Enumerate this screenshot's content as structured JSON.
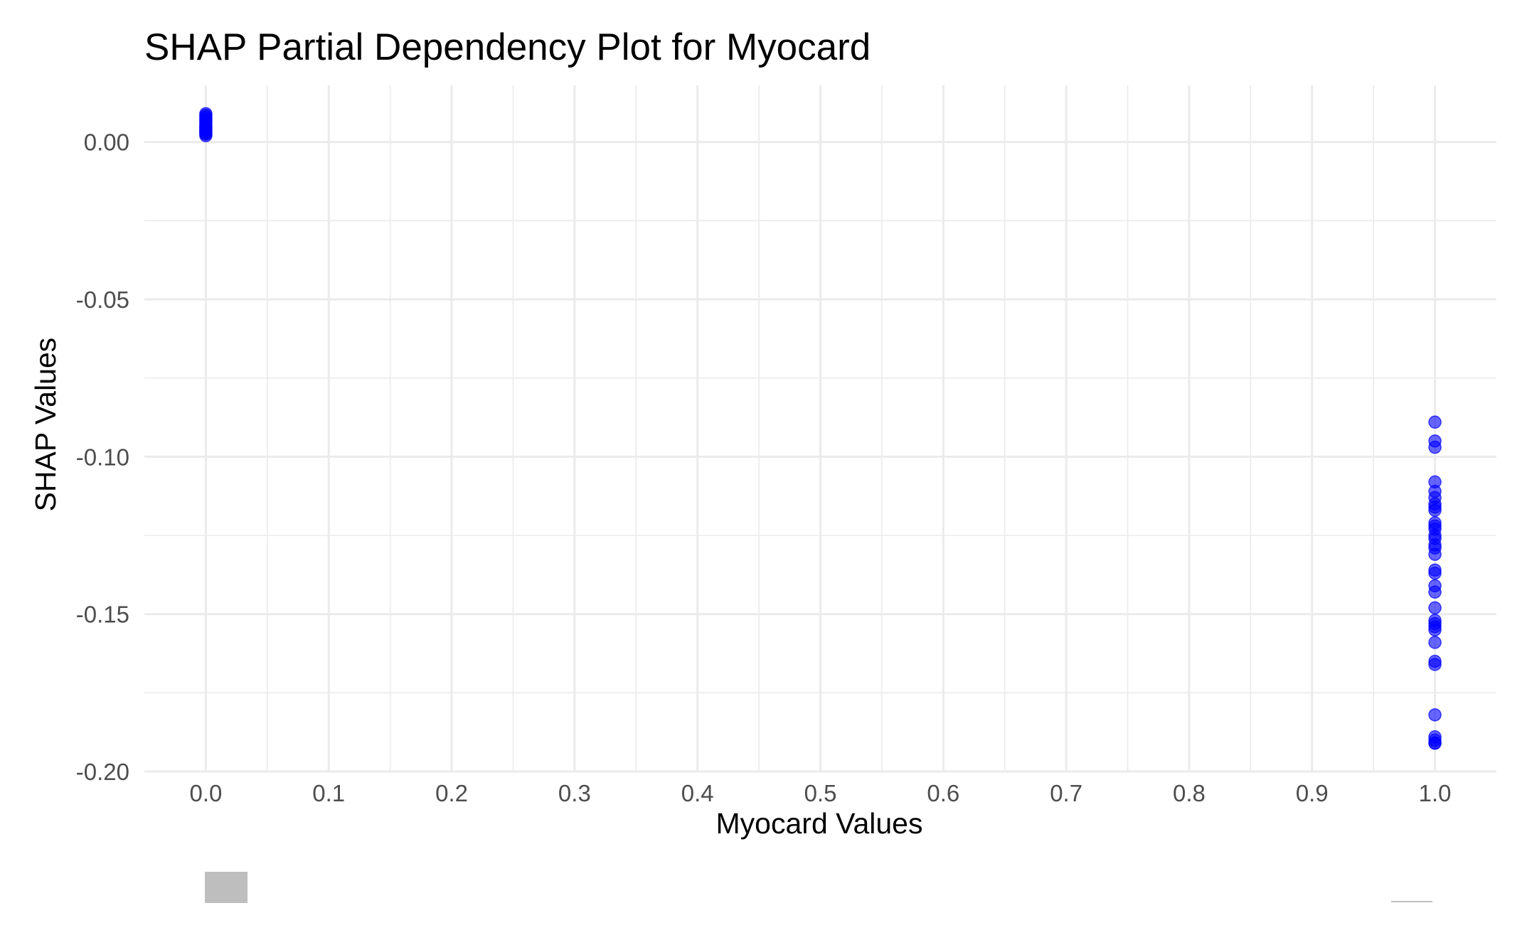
{
  "chart_data": {
    "type": "scatter",
    "title": "SHAP Partial Dependency Plot for Myocard",
    "xlabel": "Myocard Values",
    "ylabel": "SHAP Values",
    "xlim": [
      -0.05,
      1.05
    ],
    "ylim": [
      -0.2,
      0.018
    ],
    "x_ticks": [
      0.0,
      0.1,
      0.2,
      0.3,
      0.4,
      0.5,
      0.6,
      0.7,
      0.8,
      0.9,
      1.0
    ],
    "x_tick_labels": [
      "0.0",
      "0.1",
      "0.2",
      "0.3",
      "0.4",
      "0.5",
      "0.6",
      "0.7",
      "0.8",
      "0.9",
      "1.0"
    ],
    "y_ticks": [
      0.0,
      -0.05,
      -0.1,
      -0.15,
      -0.2
    ],
    "y_tick_labels": [
      "0.00",
      "-0.05",
      "-0.10",
      "-0.15",
      "-0.20"
    ],
    "grid": true,
    "point_color": "#0000ff",
    "series": [
      {
        "x": [
          0,
          0,
          0,
          0,
          0,
          0,
          0,
          0,
          0,
          0,
          0,
          0,
          0,
          0,
          0,
          0,
          0,
          0,
          1,
          1,
          1,
          1,
          1,
          1,
          1,
          1,
          1,
          1,
          1,
          1,
          1,
          1,
          1,
          1,
          1,
          1,
          1,
          1,
          1,
          1,
          1,
          1,
          1,
          1,
          1,
          1,
          1,
          1,
          1,
          1,
          1,
          1
        ],
        "y": [
          0.009,
          0.0085,
          0.008,
          0.0075,
          0.007,
          0.0065,
          0.006,
          0.0055,
          0.005,
          0.0048,
          0.0045,
          0.004,
          0.0038,
          0.0035,
          0.003,
          0.0028,
          0.0025,
          0.002,
          -0.089,
          -0.095,
          -0.097,
          -0.108,
          -0.111,
          -0.113,
          -0.115,
          -0.116,
          -0.117,
          -0.121,
          -0.122,
          -0.123,
          -0.125,
          -0.126,
          -0.128,
          -0.129,
          -0.131,
          -0.136,
          -0.137,
          -0.141,
          -0.143,
          -0.148,
          -0.152,
          -0.153,
          -0.154,
          -0.155,
          -0.159,
          -0.165,
          -0.166,
          -0.182,
          -0.189,
          -0.191,
          -0.191,
          -0.19
        ]
      }
    ]
  }
}
